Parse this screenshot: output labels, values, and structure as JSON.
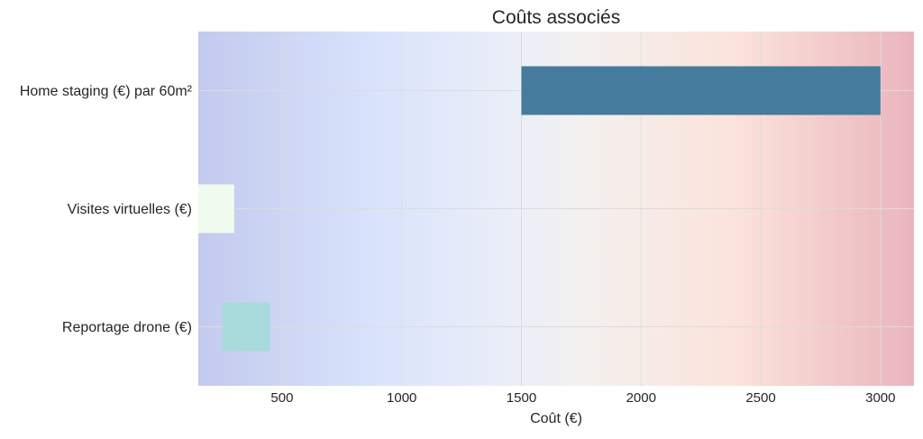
{
  "chart_data": {
    "type": "bar",
    "orientation": "horizontal",
    "bar_kind": "floating-range",
    "title": "Coûts associés",
    "xlabel": "Coût (€)",
    "ylabel": "",
    "xlim": [
      150,
      3140
    ],
    "xticks": [
      500,
      1000,
      1500,
      2000,
      2500,
      3000
    ],
    "grid": true,
    "legend": "none",
    "background": "horizontal gradient blue to white to red",
    "categories": [
      "Home staging (€) par 60m²",
      "Visites virtuelles (€)",
      "Reportage drone (€)"
    ],
    "bars": [
      {
        "category": "Home staging (€) par 60m²",
        "start": 1500,
        "end": 3000,
        "color": "#457B9D"
      },
      {
        "category": "Visites virtuelles (€)",
        "start": 150,
        "end": 300,
        "color": "#F1FAEE"
      },
      {
        "category": "Reportage drone (€)",
        "start": 250,
        "end": 450,
        "color": "#A8DADC"
      }
    ]
  }
}
